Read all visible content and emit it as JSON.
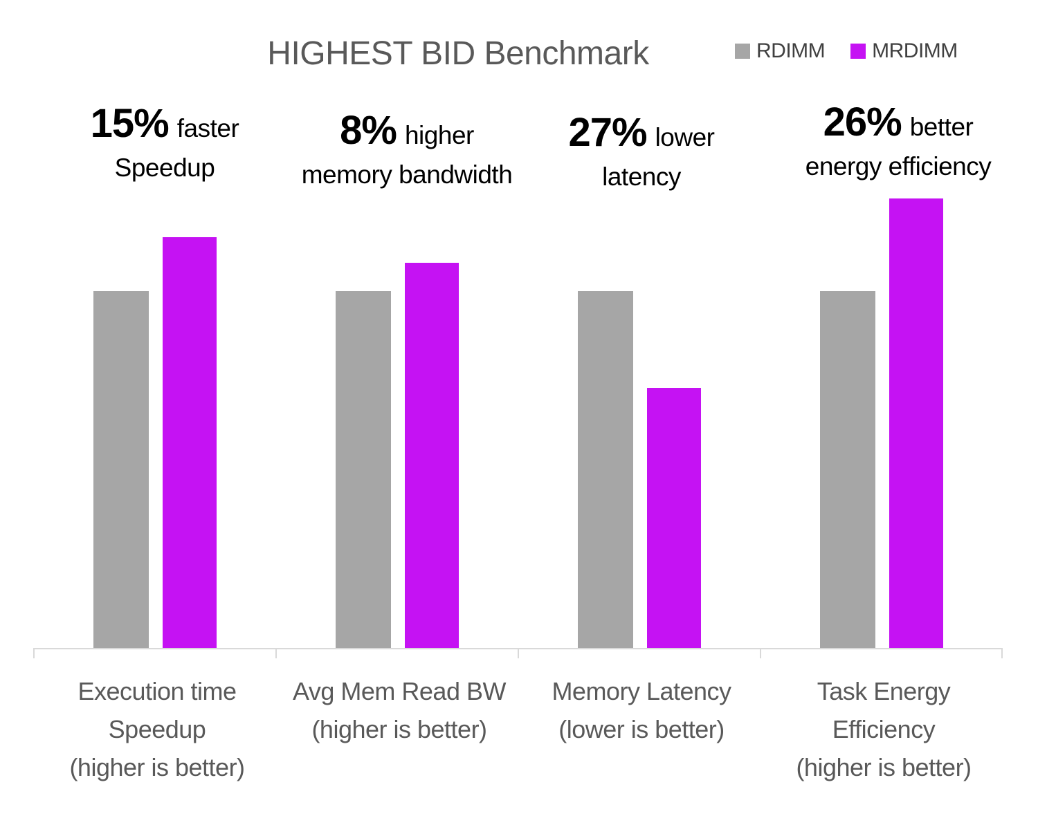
{
  "chart_data": {
    "type": "bar",
    "title": "HIGHEST BID Benchmark",
    "legend_position": "top-right",
    "grid": false,
    "y_axis_visible": false,
    "note": "bar heights normalized to RDIMM baseline = 1.0",
    "ylim": [
      0,
      1.35
    ],
    "categories": [
      [
        "Execution time",
        "Speedup",
        "(higher is better)"
      ],
      [
        "Avg Mem Read BW",
        "(higher is better)"
      ],
      [
        "Memory Latency",
        "(lower is better)"
      ],
      [
        "Task Energy",
        "Efficiency",
        "(higher is better)"
      ]
    ],
    "series": [
      {
        "name": "RDIMM",
        "color": "#A6A6A6",
        "values": [
          1.0,
          1.0,
          1.0,
          1.0
        ]
      },
      {
        "name": "MRDIMM",
        "color": "#C512F3",
        "values": [
          1.15,
          1.08,
          0.73,
          1.26
        ]
      }
    ],
    "annotations": [
      {
        "value": "15%",
        "suffix": "faster",
        "line2": "Speedup"
      },
      {
        "value": "8%",
        "suffix": "higher",
        "line2": "memory bandwidth"
      },
      {
        "value": "27%",
        "suffix": "lower",
        "line2": "latency"
      },
      {
        "value": "26%",
        "suffix": "better",
        "line2": "energy efficiency"
      }
    ]
  },
  "colors": {
    "title_text": "#595959",
    "legend_text": "#404040",
    "axis_line": "#D9D9D9",
    "annotation_text": "#000000",
    "xlabel_text": "#595959",
    "background": "#FFFFFF"
  }
}
